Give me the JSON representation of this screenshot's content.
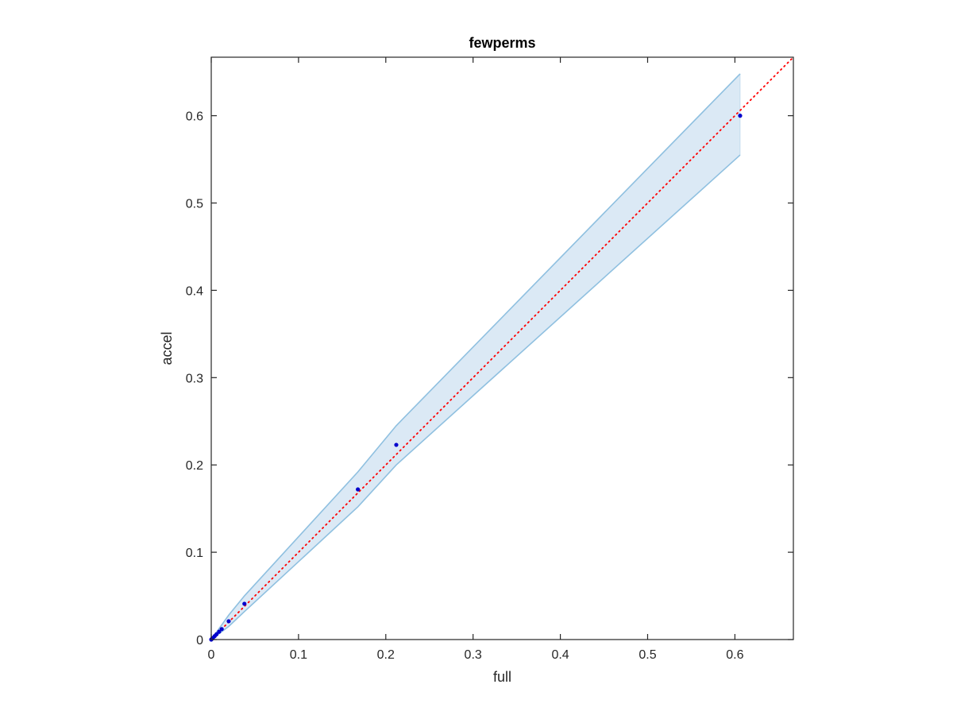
{
  "chart_data": {
    "type": "scatter",
    "title": "fewperms",
    "xlabel": "full",
    "ylabel": "accel",
    "xlim": [
      0,
      0.667
    ],
    "ylim": [
      0,
      0.667
    ],
    "xticks": [
      "0",
      "0.1",
      "0.2",
      "0.3",
      "0.4",
      "0.5",
      "0.6"
    ],
    "yticks": [
      "0",
      "0.1",
      "0.2",
      "0.3",
      "0.4",
      "0.5",
      "0.6"
    ],
    "grid": false,
    "legend": "none",
    "series": [
      {
        "kind": "points",
        "color": "#0000cc",
        "x": [
          0.0,
          0.001,
          0.002,
          0.004,
          0.006,
          0.009,
          0.012,
          0.02,
          0.038,
          0.168,
          0.212,
          0.606
        ],
        "y": [
          0.0,
          0.001,
          0.002,
          0.004,
          0.006,
          0.009,
          0.012,
          0.021,
          0.041,
          0.172,
          0.223,
          0.6
        ]
      },
      {
        "kind": "reference-line",
        "style": "dotted",
        "color": "#ff0000",
        "x": [
          0,
          0.667
        ],
        "y": [
          0,
          0.667
        ]
      },
      {
        "kind": "band",
        "fill": "#dbe9f5",
        "edge": "#8fc0e0",
        "x": [
          0.0,
          0.02,
          0.038,
          0.168,
          0.212,
          0.606
        ],
        "upper": [
          0.0,
          0.028,
          0.05,
          0.192,
          0.245,
          0.648
        ],
        "lower": [
          0.0,
          0.015,
          0.032,
          0.152,
          0.2,
          0.555
        ]
      }
    ]
  }
}
